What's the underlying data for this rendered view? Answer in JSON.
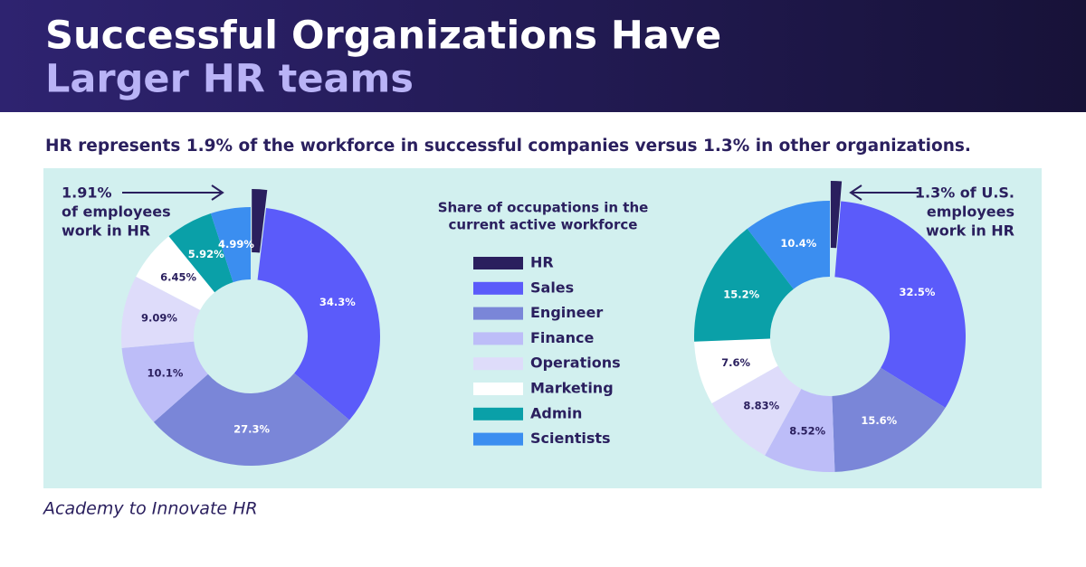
{
  "header": {
    "title": [
      "Successful Organizations Have",
      "Larger HR teams"
    ]
  },
  "subtitle": "HR represents 1.9% of the workforce in successful companies versus 1.3% in other organizations.",
  "legend": {
    "title": [
      "Share of occupations in the",
      "current active workforce"
    ]
  },
  "chart_data": [
    {
      "type": "donut",
      "categories": [
        "HR",
        "Sales",
        "Engineer",
        "Finance",
        "Operations",
        "Marketing",
        "Admin",
        "Scientists"
      ],
      "values": [
        1.91,
        34.3,
        27.3,
        10.1,
        9.09,
        6.45,
        5.92,
        4.99
      ],
      "value_labels": [
        null,
        "34.3%",
        "27.3%",
        "10.1%",
        "9.09%",
        "6.45%",
        "5.92%",
        "4.99%"
      ],
      "colors": [
        "#2a1f5e",
        "#5b5bfa",
        "#7a86d8",
        "#bdbdf8",
        "#dedcfa",
        "#ffffff",
        "#0aa0a8",
        "#3b8ef0"
      ],
      "annotation": [
        "1.91%",
        "of employees",
        "work in HR"
      ]
    },
    {
      "type": "donut",
      "categories": [
        "HR",
        "Sales",
        "Engineer",
        "Finance",
        "Operations",
        "Marketing",
        "Admin",
        "Scientists"
      ],
      "values": [
        1.3,
        32.5,
        15.6,
        8.52,
        8.83,
        7.6,
        15.2,
        10.4
      ],
      "value_labels": [
        null,
        "32.5%",
        "15.6%",
        "8.52%",
        "8.83%",
        "7.6%",
        "15.2%",
        "10.4%"
      ],
      "colors": [
        "#2a1f5e",
        "#5b5bfa",
        "#7a86d8",
        "#bdbdf8",
        "#dedcfa",
        "#ffffff",
        "#0aa0a8",
        "#3b8ef0"
      ],
      "annotation": [
        "1.3% of U.S.",
        "employees",
        "work in HR"
      ]
    }
  ],
  "footer": "Academy to Innovate HR"
}
